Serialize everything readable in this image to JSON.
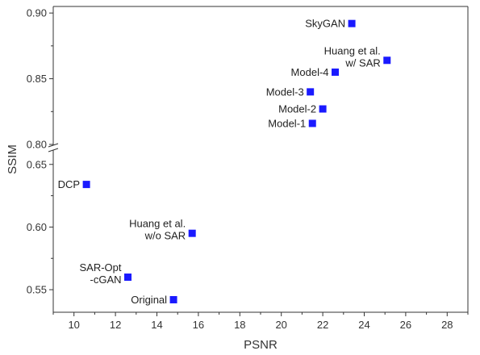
{
  "chart_data": {
    "type": "scatter",
    "title": "",
    "xlabel": "PSNR",
    "ylabel": "SSIM",
    "xlim": [
      9,
      29
    ],
    "xticks": [
      10,
      12,
      14,
      16,
      18,
      20,
      22,
      24,
      26,
      28
    ],
    "y_broken": true,
    "y_segments": [
      {
        "range": [
          0.532,
          0.655
        ],
        "ticks": [
          0.55,
          0.6,
          0.65
        ]
      },
      {
        "range": [
          0.8,
          0.905
        ],
        "ticks": [
          0.8,
          0.85,
          0.9
        ]
      }
    ],
    "marker_color": "#1a1aff",
    "marker": "square",
    "grid": false,
    "points": [
      {
        "x": 23.4,
        "y": 0.892,
        "lines": [
          "SkyGAN"
        ],
        "side": "left"
      },
      {
        "x": 25.1,
        "y": 0.864,
        "lines": [
          "Huang et al.",
          "w/ SAR"
        ],
        "side": "left"
      },
      {
        "x": 22.6,
        "y": 0.855,
        "lines": [
          "Model-4"
        ],
        "side": "left"
      },
      {
        "x": 21.4,
        "y": 0.84,
        "lines": [
          "Model-3"
        ],
        "side": "left"
      },
      {
        "x": 22.0,
        "y": 0.827,
        "lines": [
          "Model-2"
        ],
        "side": "left"
      },
      {
        "x": 21.5,
        "y": 0.816,
        "lines": [
          "Model-1"
        ],
        "side": "left"
      },
      {
        "x": 10.6,
        "y": 0.634,
        "lines": [
          "DCP"
        ],
        "side": "left"
      },
      {
        "x": 15.7,
        "y": 0.595,
        "lines": [
          "Huang et al.",
          "w/o SAR"
        ],
        "side": "left"
      },
      {
        "x": 12.6,
        "y": 0.56,
        "lines": [
          "SAR-Opt",
          "-cGAN"
        ],
        "side": "left"
      },
      {
        "x": 14.8,
        "y": 0.542,
        "lines": [
          "Original"
        ],
        "side": "left"
      }
    ]
  }
}
